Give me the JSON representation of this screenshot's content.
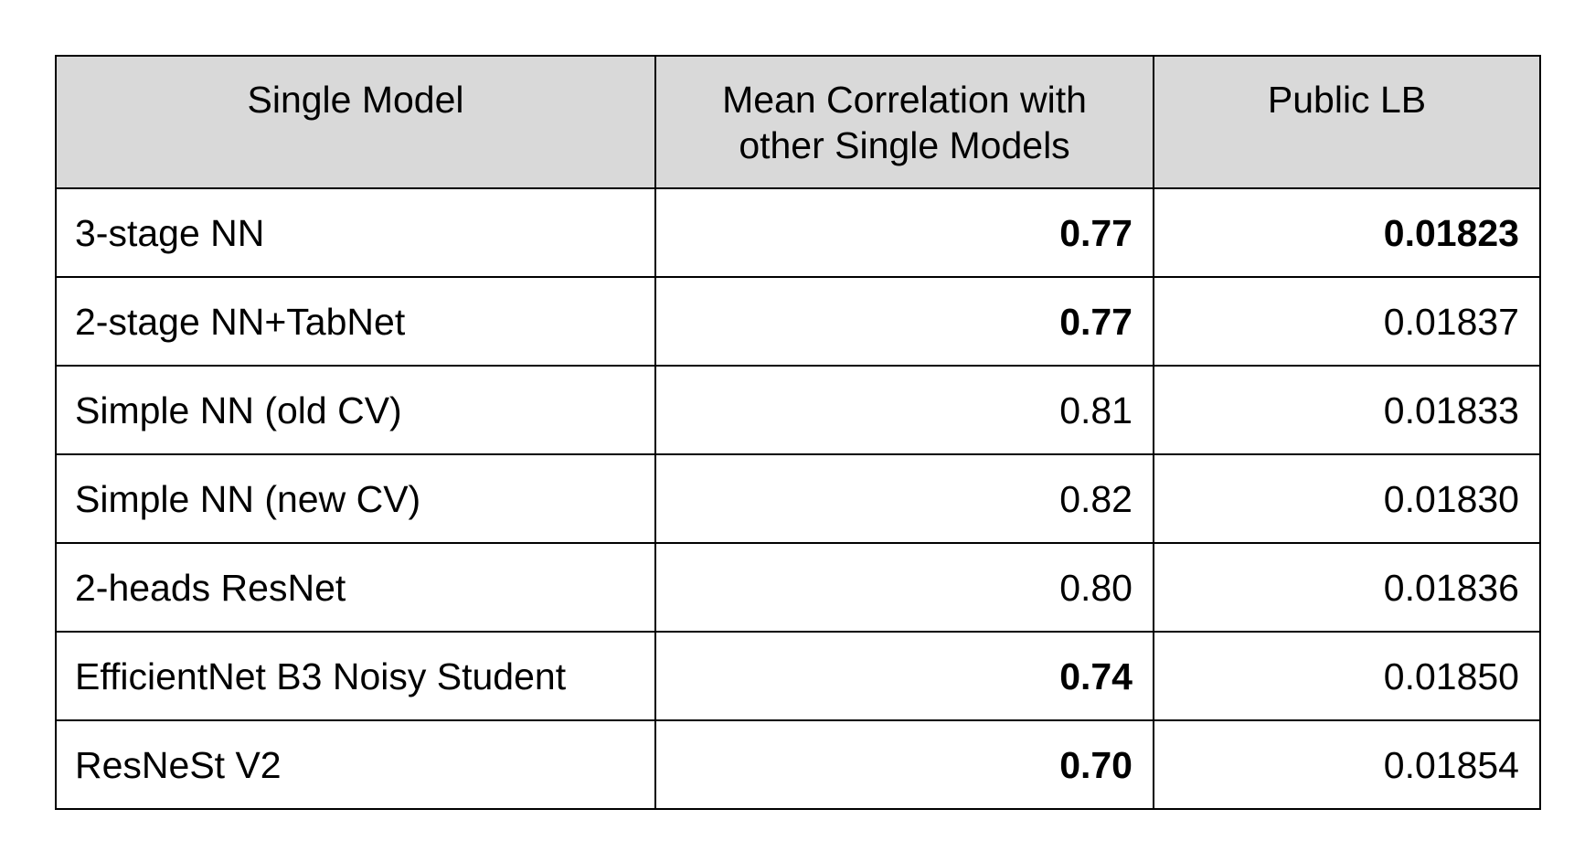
{
  "table": {
    "headers": [
      "Single Model",
      "Mean Correlation with other Single Models",
      "Public LB"
    ],
    "rows": [
      {
        "model": "3-stage NN",
        "mean_correlation": "0.77",
        "public_lb": "0.01823",
        "corr_bold": true,
        "lb_bold": true
      },
      {
        "model": "2-stage NN+TabNet",
        "mean_correlation": "0.77",
        "public_lb": "0.01837",
        "corr_bold": true,
        "lb_bold": false
      },
      {
        "model": "Simple NN (old CV)",
        "mean_correlation": "0.81",
        "public_lb": "0.01833",
        "corr_bold": false,
        "lb_bold": false
      },
      {
        "model": "Simple NN (new CV)",
        "mean_correlation": "0.82",
        "public_lb": "0.01830",
        "corr_bold": false,
        "lb_bold": false
      },
      {
        "model": "2-heads ResNet",
        "mean_correlation": "0.80",
        "public_lb": "0.01836",
        "corr_bold": false,
        "lb_bold": false
      },
      {
        "model": "EfficientNet B3 Noisy Student",
        "mean_correlation": "0.74",
        "public_lb": "0.01850",
        "corr_bold": true,
        "lb_bold": false
      },
      {
        "model": "ResNeSt V2",
        "mean_correlation": "0.70",
        "public_lb": "0.01854",
        "corr_bold": true,
        "lb_bold": false
      }
    ]
  },
  "colors": {
    "header_background": "#d9d9d9",
    "border": "#000000",
    "text": "#000000"
  }
}
